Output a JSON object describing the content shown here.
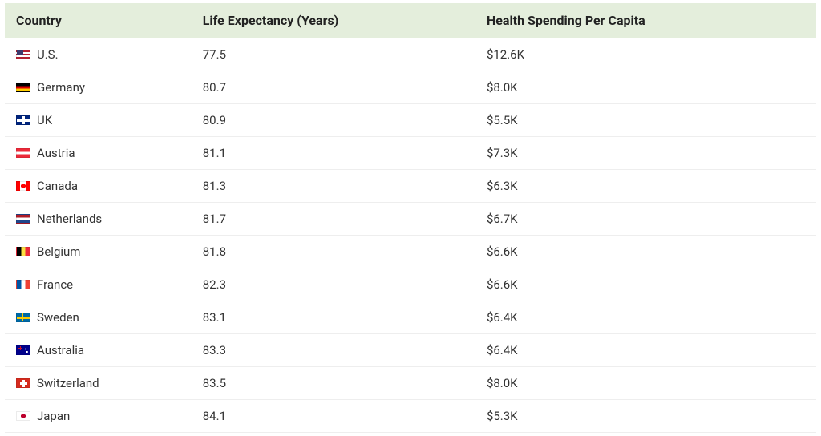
{
  "table": {
    "header_bg": "#e4eedc",
    "header_text_color": "#222222",
    "row_text_color": "#333333",
    "row_border_color": "#eeeeee",
    "columns": [
      {
        "key": "country",
        "label": "Country"
      },
      {
        "key": "life",
        "label": "Life Expectancy (Years)"
      },
      {
        "key": "spend",
        "label": "Health Spending Per Capita"
      }
    ],
    "rows": [
      {
        "flag": "us",
        "country": "U.S.",
        "life": "77.5",
        "spend": "$12.6K"
      },
      {
        "flag": "de",
        "country": "Germany",
        "life": "80.7",
        "spend": "$8.0K"
      },
      {
        "flag": "uk",
        "country": "UK",
        "life": "80.9",
        "spend": "$5.5K"
      },
      {
        "flag": "at",
        "country": "Austria",
        "life": "81.1",
        "spend": "$7.3K"
      },
      {
        "flag": "ca",
        "country": "Canada",
        "life": "81.3",
        "spend": "$6.3K"
      },
      {
        "flag": "nl",
        "country": "Netherlands",
        "life": "81.7",
        "spend": "$6.7K"
      },
      {
        "flag": "be",
        "country": "Belgium",
        "life": "81.8",
        "spend": "$6.6K"
      },
      {
        "flag": "fr",
        "country": "France",
        "life": "82.3",
        "spend": "$6.6K"
      },
      {
        "flag": "se",
        "country": "Sweden",
        "life": "83.1",
        "spend": "$6.4K"
      },
      {
        "flag": "au",
        "country": "Australia",
        "life": "83.3",
        "spend": "$6.4K"
      },
      {
        "flag": "ch",
        "country": "Switzerland",
        "life": "83.5",
        "spend": "$8.0K"
      },
      {
        "flag": "jp",
        "country": "Japan",
        "life": "84.1",
        "spend": "$5.3K"
      }
    ]
  }
}
